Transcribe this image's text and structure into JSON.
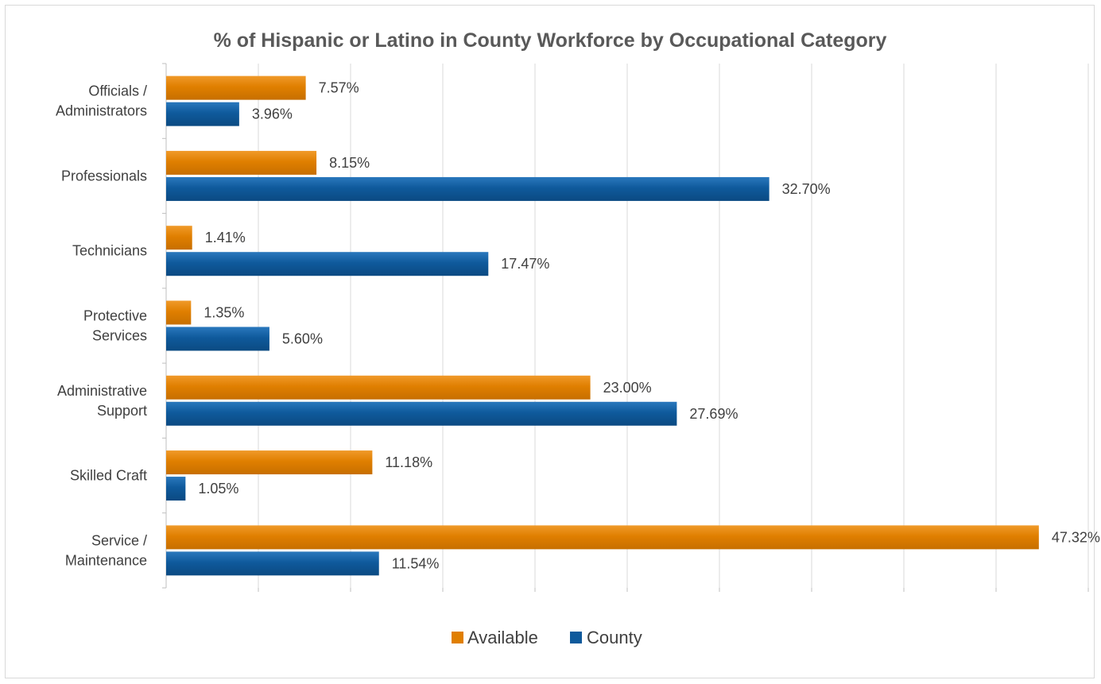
{
  "chart_data": {
    "type": "bar",
    "orientation": "horizontal",
    "title": "% of Hispanic or Latino in County Workforce by Occupational Category",
    "xlabel": "",
    "ylabel": "",
    "xlim": [
      0,
      50
    ],
    "grid": true,
    "legend_position": "bottom",
    "categories": [
      [
        "Officials /",
        "Administrators"
      ],
      [
        "Professionals"
      ],
      [
        "Technicians"
      ],
      [
        "Protective",
        "Services"
      ],
      [
        "Administrative",
        "Support"
      ],
      [
        "Skilled Craft"
      ],
      [
        "Service /",
        "Maintenance"
      ]
    ],
    "series": [
      {
        "name": "Available",
        "color": "#e07f00",
        "values": [
          7.57,
          8.15,
          1.41,
          1.35,
          23.0,
          11.18,
          47.32
        ],
        "labels": [
          "7.57%",
          "8.15%",
          "1.41%",
          "1.35%",
          "23.00%",
          "11.18%",
          "47.32%"
        ]
      },
      {
        "name": "County",
        "color": "#0f5a9c",
        "values": [
          3.96,
          32.7,
          17.47,
          5.6,
          27.69,
          1.05,
          11.54
        ],
        "labels": [
          "3.96%",
          "32.70%",
          "17.47%",
          "5.60%",
          "27.69%",
          "1.05%",
          "11.54%"
        ]
      }
    ]
  }
}
